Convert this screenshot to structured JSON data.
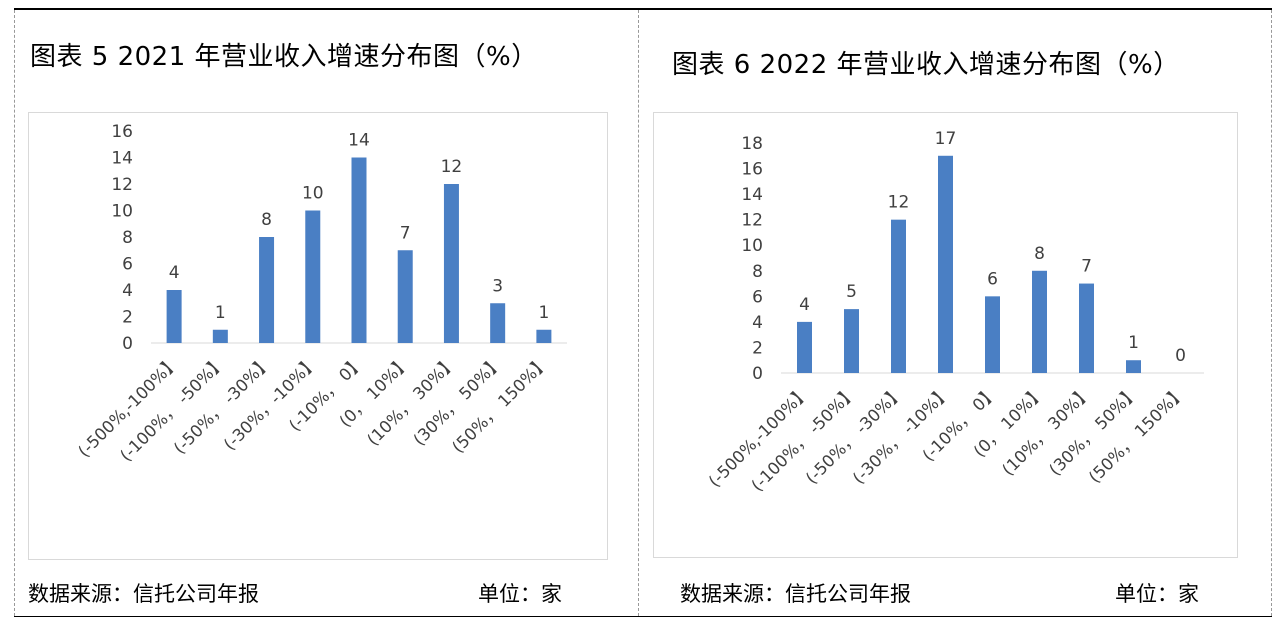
{
  "panels": [
    {
      "title": "图表 5   2021 年营业收入增速分布图（%）",
      "source": "数据来源：信托公司年报",
      "unit": "单位：家"
    },
    {
      "title": "图表 6   2022 年营业收入增速分布图（%）",
      "source": "数据来源：信托公司年报",
      "unit": "单位：家"
    }
  ],
  "chart_data": [
    {
      "type": "bar",
      "title": "图表 5   2021 年营业收入增速分布图（%）",
      "categories": [
        "(-500%,-100%】",
        "(-100%， -50%】",
        "(-50%， -30%】",
        "(-30%，-10%】",
        "(-10%， 0】",
        "(0， 10%】",
        "(10%， 30%】",
        "(30%， 50%】",
        "(50%， 150%】"
      ],
      "values": [
        4,
        1,
        8,
        10,
        14,
        7,
        12,
        3,
        1
      ],
      "yticks": [
        0,
        2,
        4,
        6,
        8,
        10,
        12,
        14,
        16
      ],
      "ylim": [
        0,
        16
      ],
      "color": "#4a7fc4",
      "grid": false
    },
    {
      "type": "bar",
      "title": "图表 6   2022 年营业收入增速分布图（%）",
      "categories": [
        "(-500%,-100%】",
        "(-100%， -50%】",
        "(-50%， -30%】",
        "(-30%， -10%】",
        "(-10%， 0】",
        "(0， 10%】",
        "(10%， 30%】",
        "(30%， 50%】",
        "(50%， 150%】"
      ],
      "values": [
        4,
        5,
        12,
        17,
        6,
        8,
        7,
        1,
        0
      ],
      "yticks": [
        0,
        2,
        4,
        6,
        8,
        10,
        12,
        14,
        16,
        18
      ],
      "ylim": [
        0,
        18
      ],
      "color": "#4a7fc4",
      "grid": false
    }
  ]
}
